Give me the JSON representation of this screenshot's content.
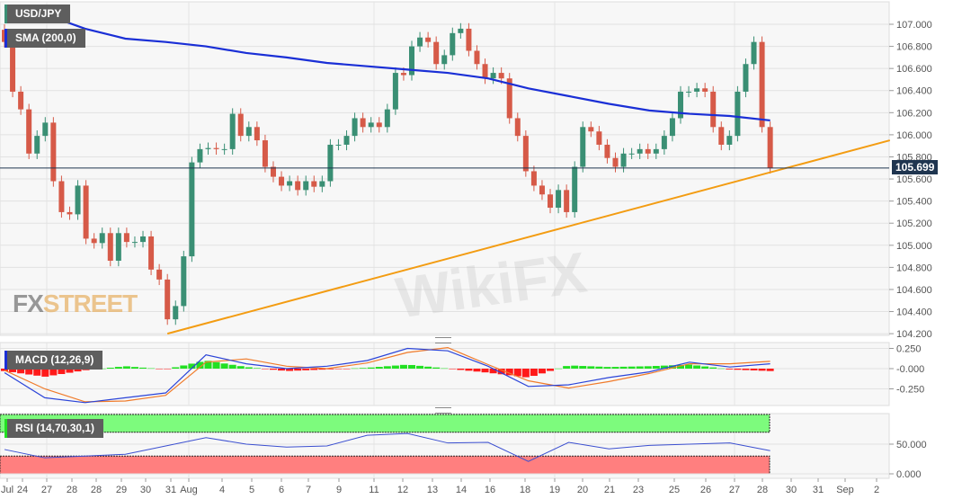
{
  "symbol_label": "USD/JPY",
  "sma_label": "SMA (200,0)",
  "macd_label": "MACD (12,26,9)",
  "rsi_label": "RSI (14,70,30,1)",
  "logo": {
    "fx": "FX",
    "street": "STREET"
  },
  "watermark": "WikiFX",
  "colors": {
    "up": "#3a8f74",
    "down": "#d65a48",
    "sma": "#1a2fd6",
    "trendline": "#f39c12",
    "macd": "#2b44d8",
    "signal": "#f07b2a",
    "hist_up": "#22e022",
    "hist_down": "#ff1a1a",
    "rsi": "#3b4fd0",
    "overbought": "#7dfb7d",
    "oversold": "#ff7f7f",
    "price_line": "#1f3550"
  },
  "chart_data": [
    {
      "type": "candlestick",
      "title": "USD/JPY",
      "ylim": [
        104.2,
        107.0
      ],
      "yticks": [
        "107.000",
        "106.800",
        "106.600",
        "106.400",
        "106.200",
        "106.000",
        "105.800",
        "105.600",
        "105.400",
        "105.200",
        "105.000",
        "104.800",
        "104.600",
        "104.400",
        "104.200"
      ],
      "xticks": [
        "Jul",
        "24",
        "27",
        "28",
        "28",
        "29",
        "30",
        "31",
        "Aug",
        "4",
        "5",
        "6",
        "7",
        "9",
        "11",
        "12",
        "13",
        "14",
        "16",
        "18",
        "19",
        "20",
        "21",
        "23",
        "25",
        "26",
        "27",
        "28",
        "30",
        "31",
        "Sep",
        "2"
      ],
      "first_open": 106.95,
      "close": [
        106.84,
        106.39,
        106.23,
        105.83,
        105.99,
        106.11,
        105.58,
        105.3,
        105.28,
        105.54,
        105.06,
        105.02,
        105.11,
        104.86,
        105.11,
        105.03,
        105.03,
        105.08,
        104.78,
        104.69,
        104.33,
        104.45,
        104.9,
        105.75,
        105.87,
        105.88,
        105.87,
        105.87,
        106.19,
        105.99,
        106.07,
        105.95,
        105.71,
        105.62,
        105.54,
        105.58,
        105.5,
        105.58,
        105.53,
        105.58,
        105.91,
        105.91,
        105.99,
        106.15,
        106.07,
        106.11,
        106.07,
        106.23,
        106.56,
        106.54,
        106.8,
        106.88,
        106.84,
        106.64,
        106.72,
        106.92,
        106.96,
        106.76,
        106.64,
        106.51,
        106.56,
        106.51,
        106.15,
        105.99,
        105.67,
        105.54,
        105.46,
        105.34,
        105.5,
        105.3,
        105.71,
        106.07,
        106.03,
        105.91,
        105.79,
        105.71,
        105.83,
        105.83,
        105.87,
        105.83,
        105.87,
        105.99,
        106.15,
        106.39,
        106.39,
        106.42,
        106.39,
        106.07,
        105.91,
        105.99,
        106.39,
        106.64,
        106.84,
        106.07,
        105.699
      ],
      "current_price": "105.699",
      "sma_200": {
        "name": "SMA (200,0)",
        "values": [
          107.16,
          107.09,
          106.96,
          106.87,
          106.84,
          106.8,
          106.74,
          106.7,
          106.65,
          106.62,
          106.59,
          106.56,
          106.51,
          106.42,
          106.35,
          106.28,
          106.22,
          106.19,
          106.17,
          106.13
        ]
      },
      "trendline": {
        "from": {
          "candle": 20,
          "price": 104.2
        },
        "to": {
          "candle": 108.7,
          "price": 105.95
        }
      }
    },
    {
      "type": "line",
      "title": "MACD (12,26,9)",
      "ylim": [
        -0.45,
        0.32
      ],
      "yticks": [
        "0.250",
        "-0.000",
        "-0.250"
      ],
      "ytick_values": [
        0.25,
        0,
        -0.25
      ],
      "series": [
        {
          "name": "MACD",
          "values": [
            -0.05,
            -0.36,
            -0.42,
            -0.36,
            -0.3,
            0.17,
            0.06,
            0.0,
            0.03,
            0.1,
            0.25,
            0.22,
            0.03,
            -0.22,
            -0.2,
            -0.11,
            -0.04,
            0.08,
            0.02,
            0.06
          ]
        },
        {
          "name": "Signal",
          "values": [
            -0.02,
            -0.25,
            -0.41,
            -0.4,
            -0.33,
            0.08,
            0.12,
            0.03,
            0.0,
            0.07,
            0.2,
            0.26,
            0.05,
            -0.15,
            -0.24,
            -0.16,
            -0.06,
            0.06,
            0.06,
            0.09
          ]
        },
        {
          "name": "Histogram",
          "values": [
            -0.03,
            -0.1,
            -0.02,
            0.03,
            -0.01,
            0.1,
            0.02,
            -0.03,
            -0.01,
            0.01,
            0.05,
            0.0,
            -0.05,
            -0.11,
            0.04,
            0.02,
            0.03,
            0.05,
            -0.01,
            -0.03
          ]
        }
      ]
    },
    {
      "type": "line",
      "title": "RSI (14,70,30,1)",
      "ylim": [
        0,
        100
      ],
      "yticks": [
        "50.000",
        "0.000"
      ],
      "ytick_values": [
        50,
        0
      ],
      "overbought": 70,
      "oversold": 30,
      "values": [
        41,
        27,
        30,
        33,
        47,
        61,
        50,
        45,
        47,
        65,
        68,
        52,
        53,
        21,
        53,
        42,
        48,
        50,
        52,
        39
      ]
    }
  ]
}
